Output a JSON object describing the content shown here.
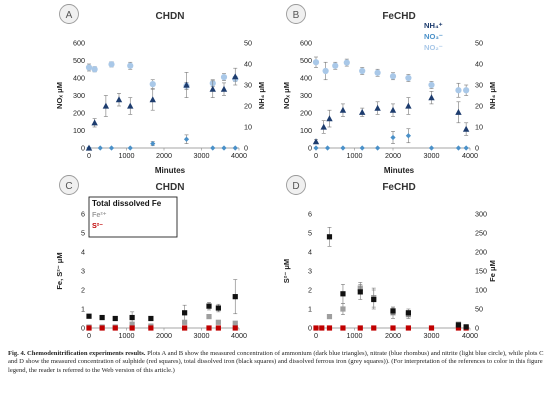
{
  "chart_data": [
    {
      "id": "A",
      "panel_letter": "A",
      "title": "CHDN",
      "type": "scatter",
      "xlabel": "Minutes",
      "xlim": [
        0,
        4000
      ],
      "xticks": [
        0,
        1000,
        2000,
        3000,
        4000
      ],
      "ylabel": "NOₓ μM",
      "ylim": [
        0,
        600
      ],
      "yticks": [
        0,
        100,
        200,
        300,
        400,
        500,
        600
      ],
      "y2label": "NH₄ μM",
      "y2lim": [
        0,
        50
      ],
      "y2ticks": [
        0,
        10,
        20,
        30,
        40,
        50
      ],
      "legend": null,
      "series": [
        {
          "key": "nitrate",
          "marker": "diamond",
          "color": "#4a90c8",
          "axis": "left",
          "points": [
            [
              0,
              0
            ],
            [
              300,
              0
            ],
            [
              600,
              0
            ],
            [
              1100,
              0
            ],
            [
              1700,
              25
            ],
            [
              2600,
              50
            ],
            [
              3300,
              0
            ],
            [
              3600,
              0
            ],
            [
              3900,
              0
            ]
          ],
          "errors": [
            0,
            0,
            0,
            0,
            12,
            25,
            0,
            0,
            0
          ]
        },
        {
          "key": "nitrite",
          "marker": "circle",
          "color": "#a9c8e8",
          "axis": "left",
          "points": [
            [
              0,
              460
            ],
            [
              150,
              450
            ],
            [
              600,
              478
            ],
            [
              1100,
              470
            ],
            [
              1700,
              365
            ],
            [
              2600,
              355
            ],
            [
              3300,
              370
            ],
            [
              3600,
              405
            ],
            [
              3900,
              395
            ]
          ],
          "errors": [
            20,
            15,
            15,
            20,
            25,
            20,
            20,
            20,
            15
          ]
        },
        {
          "key": "ammonium",
          "marker": "triangle",
          "color": "#1d3c6e",
          "axis": "right",
          "points": [
            [
              0,
              0
            ],
            [
              150,
              12
            ],
            [
              450,
              20
            ],
            [
              800,
              23
            ],
            [
              1100,
              20
            ],
            [
              1700,
              23
            ],
            [
              2600,
              30
            ],
            [
              3300,
              28
            ],
            [
              3600,
              28
            ],
            [
              3900,
              34
            ]
          ],
          "errors": [
            0,
            2,
            5,
            3,
            4,
            5,
            6,
            4,
            3,
            4
          ]
        }
      ]
    },
    {
      "id": "B",
      "panel_letter": "B",
      "title": "FeCHD",
      "type": "scatter",
      "xlabel": "Minutes",
      "xlim": [
        0,
        4000
      ],
      "xticks": [
        0,
        1000,
        2000,
        3000,
        4000
      ],
      "ylabel": "NOₓ μM",
      "ylim": [
        0,
        600
      ],
      "yticks": [
        0,
        100,
        200,
        300,
        400,
        500,
        600
      ],
      "y2label": "NH₄ μM",
      "y2lim": [
        0,
        50
      ],
      "y2ticks": [
        0,
        10,
        20,
        30,
        40,
        50
      ],
      "legend": {
        "position": "top-right",
        "entries": [
          {
            "label": "NH₄⁺",
            "color": "#1d3c6e"
          },
          {
            "label": "NO₃⁻",
            "color": "#4a90c8"
          },
          {
            "label": "NO₂⁻",
            "color": "#a9c8e8"
          }
        ]
      },
      "series": [
        {
          "key": "nitrate",
          "marker": "diamond",
          "color": "#4a90c8",
          "axis": "left",
          "points": [
            [
              0,
              0
            ],
            [
              300,
              0
            ],
            [
              700,
              0
            ],
            [
              1200,
              0
            ],
            [
              1600,
              0
            ],
            [
              2000,
              60
            ],
            [
              2400,
              70
            ],
            [
              3000,
              0
            ],
            [
              3700,
              0
            ],
            [
              3900,
              0
            ]
          ],
          "errors": [
            0,
            0,
            0,
            0,
            0,
            35,
            40,
            0,
            0,
            0
          ]
        },
        {
          "key": "nitrite",
          "marker": "circle",
          "color": "#a9c8e8",
          "axis": "left",
          "points": [
            [
              0,
              490
            ],
            [
              250,
              440
            ],
            [
              500,
              470
            ],
            [
              800,
              488
            ],
            [
              1200,
              440
            ],
            [
              1600,
              430
            ],
            [
              2000,
              410
            ],
            [
              2400,
              400
            ],
            [
              3000,
              360
            ],
            [
              3700,
              330
            ],
            [
              3900,
              330
            ]
          ],
          "errors": [
            30,
            50,
            20,
            20,
            20,
            20,
            20,
            20,
            20,
            40,
            30
          ]
        },
        {
          "key": "ammonium",
          "marker": "triangle",
          "color": "#1d3c6e",
          "axis": "right",
          "points": [
            [
              0,
              3
            ],
            [
              200,
              10
            ],
            [
              350,
              14
            ],
            [
              700,
              18
            ],
            [
              1200,
              17
            ],
            [
              1600,
              19
            ],
            [
              2000,
              18
            ],
            [
              2400,
              20
            ],
            [
              3000,
              24
            ],
            [
              3700,
              17
            ],
            [
              3900,
              9
            ]
          ],
          "errors": [
            1,
            3,
            4,
            3,
            2,
            3,
            3,
            4,
            3,
            5,
            3
          ]
        }
      ]
    },
    {
      "id": "C",
      "panel_letter": "C",
      "title": "CHDN",
      "type": "scatter",
      "xlabel": "Minutes",
      "xlim": [
        0,
        4000
      ],
      "xticks": [
        0,
        1000,
        2000,
        3000,
        4000
      ],
      "ylabel": "Fe, S²⁻ μM",
      "ylim": [
        0,
        6
      ],
      "yticks": [
        0,
        1,
        2,
        3,
        4,
        5,
        6
      ],
      "y2label": null,
      "legend": {
        "position": "top-left",
        "boxed": true,
        "entries": [
          {
            "label": "Total dissolved Fe",
            "color": "#111111"
          },
          {
            "label": "Fe²⁺",
            "color": "#9e9e9e"
          },
          {
            "label": "S²⁻",
            "color": "#c00000"
          }
        ]
      },
      "series": [
        {
          "key": "total_fe",
          "marker": "square",
          "color": "#111111",
          "axis": "left",
          "points": [
            [
              0,
              0.62
            ],
            [
              350,
              0.55
            ],
            [
              700,
              0.5
            ],
            [
              1150,
              0.55
            ],
            [
              1650,
              0.5
            ],
            [
              2550,
              0.8
            ],
            [
              3200,
              1.15
            ],
            [
              3450,
              1.05
            ],
            [
              3900,
              1.65
            ]
          ],
          "errors": [
            0.1,
            0.1,
            0.1,
            0.3,
            0.1,
            0.4,
            0.2,
            0.2,
            0.9
          ]
        },
        {
          "key": "fe2",
          "marker": "square",
          "color": "#9e9e9e",
          "axis": "left",
          "points": [
            [
              0,
              0.05
            ],
            [
              350,
              0.05
            ],
            [
              700,
              0.05
            ],
            [
              1150,
              0.2
            ],
            [
              1650,
              0.1
            ],
            [
              2550,
              0.3
            ],
            [
              3200,
              0.6
            ],
            [
              3450,
              0.3
            ],
            [
              3900,
              0.25
            ]
          ],
          "errors": [
            0,
            0,
            0,
            0.1,
            0,
            0.1,
            0.1,
            0.1,
            0.1
          ]
        },
        {
          "key": "sulfide",
          "marker": "square",
          "color": "#c00000",
          "axis": "left",
          "points": [
            [
              0,
              0
            ],
            [
              350,
              0
            ],
            [
              700,
              0
            ],
            [
              1150,
              0
            ],
            [
              1650,
              0
            ],
            [
              2550,
              0
            ],
            [
              3200,
              0
            ],
            [
              3450,
              0
            ],
            [
              3900,
              0
            ]
          ],
          "errors": [
            0,
            0,
            0,
            0,
            0,
            0,
            0,
            0,
            0
          ]
        }
      ]
    },
    {
      "id": "D",
      "panel_letter": "D",
      "title": "FeCHD",
      "type": "scatter",
      "xlabel": "Minutes",
      "xlim": [
        0,
        4000
      ],
      "xticks": [
        0,
        1000,
        2000,
        3000,
        4000
      ],
      "ylabel": "S²⁻ μM",
      "ylim": [
        0,
        6
      ],
      "yticks": [
        0,
        1,
        2,
        3,
        4,
        5,
        6
      ],
      "y2label": "Fe μM",
      "y2lim": [
        0,
        300
      ],
      "y2ticks": [
        0,
        50,
        100,
        150,
        200,
        250,
        300
      ],
      "legend": null,
      "series": [
        {
          "key": "sulfide",
          "marker": "square",
          "color": "#c00000",
          "axis": "left",
          "points": [
            [
              0,
              0
            ],
            [
              150,
              0
            ],
            [
              350,
              0
            ],
            [
              700,
              0
            ],
            [
              1150,
              0
            ],
            [
              1500,
              0
            ],
            [
              2000,
              0
            ],
            [
              2400,
              0
            ],
            [
              3000,
              0
            ],
            [
              3700,
              0
            ],
            [
              3900,
              0
            ]
          ],
          "errors": [
            0,
            0,
            0,
            0,
            0,
            0,
            0,
            0,
            0,
            0,
            0
          ]
        },
        {
          "key": "fe2",
          "marker": "square",
          "color": "#9e9e9e",
          "axis": "right",
          "points": [
            [
              350,
              30
            ],
            [
              700,
              50
            ],
            [
              1150,
              105
            ],
            [
              1500,
              80
            ],
            [
              2000,
              40
            ],
            [
              2400,
              35
            ],
            [
              3700,
              10
            ]
          ],
          "errors": [
            5,
            15,
            15,
            25,
            15,
            10,
            5
          ]
        },
        {
          "key": "total_fe",
          "marker": "square",
          "color": "#111111",
          "axis": "right",
          "points": [
            [
              350,
              240
            ],
            [
              700,
              90
            ],
            [
              1150,
              95
            ],
            [
              1500,
              75
            ],
            [
              2000,
              45
            ],
            [
              2400,
              40
            ],
            [
              3700,
              8
            ],
            [
              3900,
              3
            ]
          ],
          "errors": [
            25,
            25,
            20,
            25,
            10,
            10,
            5,
            2
          ]
        }
      ]
    }
  ],
  "caption": {
    "bold": "Fig. 4.  Chemodenitrification experiments results.",
    "text": " Plots A and B show the measured concentration of ammonium (dark blue triangles), nitrate (blue rhombus) and nitrite (light blue circle), while plots C and D show the measured concentration of sulphide (red squares), total dissolved iron (black squares) and dissolved ferrous iron (grey squares)). (For interpretation of the references to color in this figure legend, the reader is referred to the Web version of this article.)"
  }
}
